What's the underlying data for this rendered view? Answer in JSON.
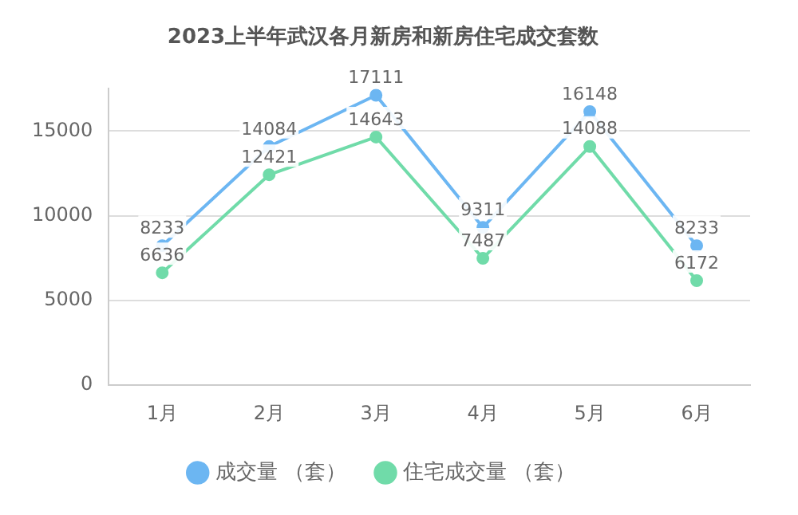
{
  "chart_data": {
    "type": "line",
    "title": "2023上半年武汉各月新房和新房住宅成交套数",
    "categories": [
      "1月",
      "2月",
      "3月",
      "4月",
      "5月",
      "6月"
    ],
    "series": [
      {
        "name": "成交量 （套）",
        "color": "#6cb6f2",
        "values": [
          8233,
          14084,
          17111,
          9311,
          16148,
          8233
        ]
      },
      {
        "name": "住宅成交量 （套）",
        "color": "#70dba9",
        "values": [
          6636,
          12421,
          14643,
          7487,
          14088,
          6172
        ]
      }
    ],
    "ylim": [
      0,
      17500
    ],
    "yticks": [
      0,
      5000,
      10000,
      15000
    ],
    "grid": "y",
    "legend": "bottom",
    "marker": "circle",
    "line_style": "solid",
    "data_labels": true
  }
}
